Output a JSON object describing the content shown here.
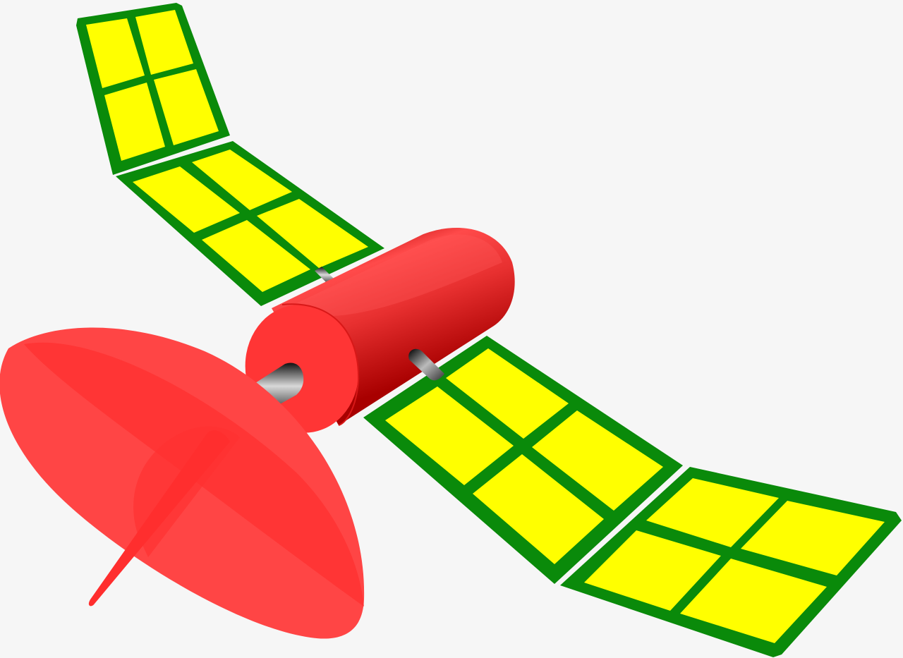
{
  "background": "#f6f6f6",
  "colors": {
    "panel_frame": "#0a8a0a",
    "panel_cell": "#ffff00",
    "body_red": "#ff3b3b",
    "body_dark": "#b00000",
    "dish_red": "#ff3b3b",
    "dish_light": "#ff5c5c",
    "metal_dark": "#222222",
    "metal_light": "#cccccc"
  },
  "components": {
    "solar_panels": [
      "upper-outer-panel",
      "upper-inner-panel",
      "lower-inner-panel",
      "lower-outer-panel"
    ],
    "body": "cylinder-body",
    "antenna": "dish-antenna",
    "connectors": [
      "front-nozzle",
      "side-nozzle",
      "upper-strut"
    ]
  }
}
